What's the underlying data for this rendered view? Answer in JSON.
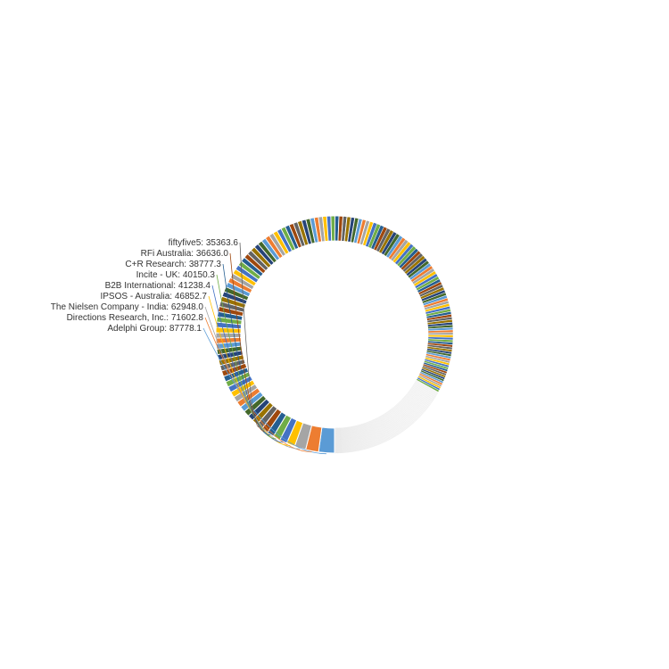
{
  "chart_data": {
    "type": "pie",
    "variant": "donut",
    "start_position": "bottom (6 o'clock)",
    "direction": "clockwise",
    "layout_note": "first slice at the bottom, slices run clockwise up the left side; the lower half of the ring is a long tail of near-zero slices rendered very light",
    "categories": [
      "Adelphi Group",
      "Directions Research, Inc.",
      "The Nielsen Company - India",
      "IPSOS - Australia",
      "B2B International",
      "Incite - UK",
      "C+R Research",
      "RFi Australia",
      "fiftyfive5"
    ],
    "values": [
      87778.1,
      71602.8,
      62948.0,
      46852.7,
      41238.4,
      40150.3,
      38777.3,
      36636.0,
      35363.6
    ],
    "data_labels": [
      "Adelphi Group: 87778.1",
      "Directions Research, Inc.: 71602.8",
      "The Nielsen Company - India: 62948.0",
      "IPSOS - Australia: 46852.7",
      "B2B International: 41238.4",
      "Incite - UK: 40150.3",
      "C+R Research: 38777.3",
      "RFi Australia: 36636.0",
      "fiftyfive5: 35363.6"
    ],
    "unlabeled_tail": {
      "approx_count": 340,
      "approx_value_range": [
        300,
        33000
      ],
      "note": "values of the many unlabeled slices are not printed and are estimated only from slice widths"
    },
    "palette": [
      "#5b9bd5",
      "#ed7d31",
      "#a5a5a5",
      "#ffc000",
      "#4472c4",
      "#70ad47",
      "#255e91",
      "#9e480e",
      "#636363",
      "#997300",
      "#264478",
      "#43682b"
    ],
    "legend": "none",
    "title": ""
  }
}
